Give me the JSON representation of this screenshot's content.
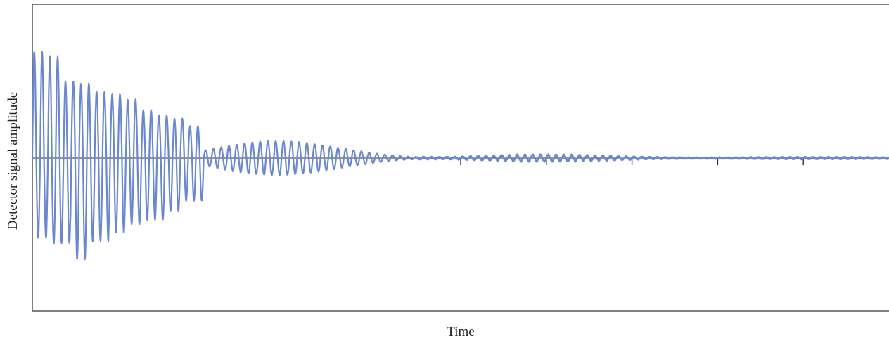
{
  "chart_data": {
    "type": "line",
    "title": "",
    "xlabel": "Time",
    "ylabel": "Detector signal amplitude",
    "xlim": [
      0,
      1
    ],
    "ylim": [
      -1.2,
      1.2
    ],
    "grid": false,
    "legend": "none",
    "series": [
      {
        "line_color": "#6a87d0",
        "signal_model": "damped beating sinusoid (free induction decay)",
        "initial_peaks": [
          1.0,
          0.95,
          0.72,
          0.7,
          0.62,
          0.6,
          0.55,
          0.45,
          0.4,
          0.37,
          0.3
        ],
        "initial_troughs": [
          -0.75,
          -0.8,
          -0.95,
          -0.78,
          -0.7,
          -0.62,
          -0.58,
          -0.5,
          -0.4
        ]
      }
    ],
    "baseline_tick_marks_x": [
      0.5,
      0.6,
      0.7,
      0.8,
      0.9
    ]
  }
}
